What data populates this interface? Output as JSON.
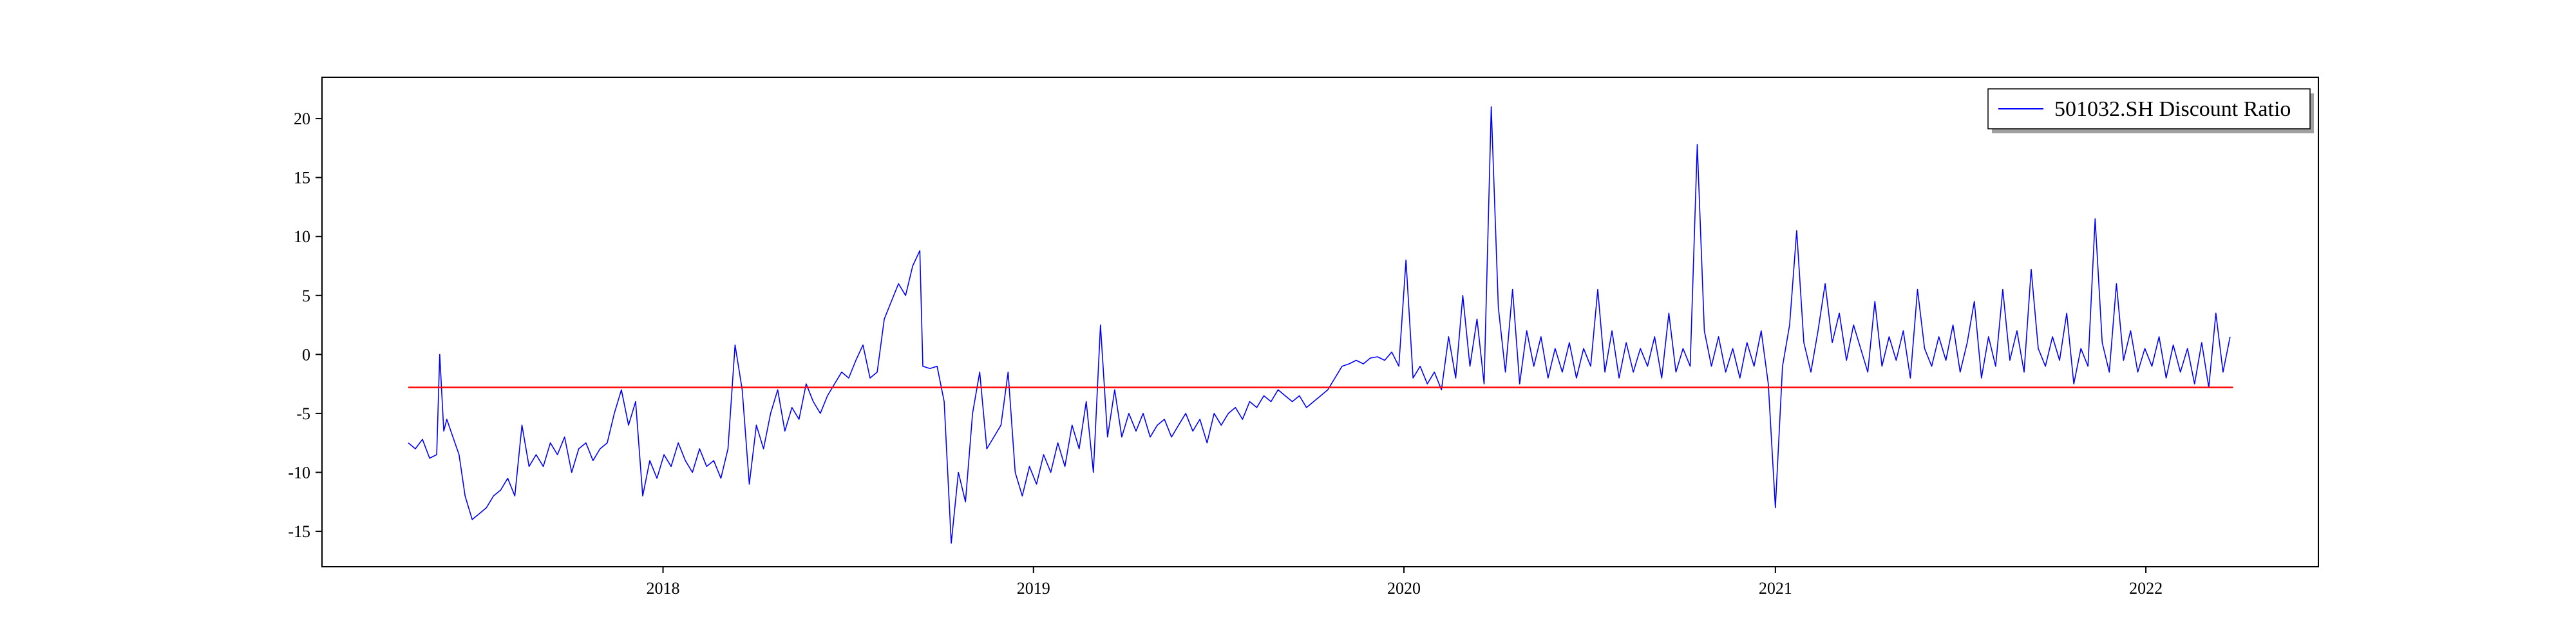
{
  "chart_data": {
    "type": "line",
    "title": "",
    "xlabel": "",
    "ylabel": "",
    "x_ticks": [
      "2018",
      "2019",
      "2020",
      "2021",
      "2022"
    ],
    "y_ticks": [
      20,
      15,
      10,
      5,
      0,
      -5,
      -10,
      -15
    ],
    "ylim": [
      -18,
      23.5
    ],
    "xlim": [
      "2017-01-30",
      "2022-06-20"
    ],
    "legend": {
      "position": "top-right",
      "entries": [
        "501032.SH Discount Ratio"
      ]
    },
    "grid": false,
    "colors": {
      "series": "#0000ff",
      "mean": "#ff0000",
      "axes": "#000000"
    },
    "series": [
      {
        "name": "501032.SH Discount Ratio",
        "color": "#0000ff",
        "points": [
          [
            "2017-04-25",
            -7.5
          ],
          [
            "2017-05-02",
            -8.0
          ],
          [
            "2017-05-09",
            -7.2
          ],
          [
            "2017-05-16",
            -8.8
          ],
          [
            "2017-05-23",
            -8.5
          ],
          [
            "2017-05-26",
            0.0
          ],
          [
            "2017-05-30",
            -6.5
          ],
          [
            "2017-06-02",
            -5.5
          ],
          [
            "2017-06-08",
            -7.0
          ],
          [
            "2017-06-14",
            -8.5
          ],
          [
            "2017-06-20",
            -12.0
          ],
          [
            "2017-06-27",
            -14.0
          ],
          [
            "2017-07-04",
            -13.5
          ],
          [
            "2017-07-11",
            -13.0
          ],
          [
            "2017-07-18",
            -12.0
          ],
          [
            "2017-07-25",
            -11.5
          ],
          [
            "2017-08-01",
            -10.5
          ],
          [
            "2017-08-08",
            -12.0
          ],
          [
            "2017-08-15",
            -6.0
          ],
          [
            "2017-08-22",
            -9.5
          ],
          [
            "2017-08-29",
            -8.5
          ],
          [
            "2017-09-05",
            -9.5
          ],
          [
            "2017-09-12",
            -7.5
          ],
          [
            "2017-09-19",
            -8.5
          ],
          [
            "2017-09-26",
            -7.0
          ],
          [
            "2017-10-03",
            -10.0
          ],
          [
            "2017-10-10",
            -8.0
          ],
          [
            "2017-10-17",
            -7.5
          ],
          [
            "2017-10-24",
            -9.0
          ],
          [
            "2017-10-31",
            -8.0
          ],
          [
            "2017-11-07",
            -7.5
          ],
          [
            "2017-11-14",
            -5.0
          ],
          [
            "2017-11-21",
            -3.0
          ],
          [
            "2017-11-28",
            -6.0
          ],
          [
            "2017-12-05",
            -4.0
          ],
          [
            "2017-12-12",
            -12.0
          ],
          [
            "2017-12-19",
            -9.0
          ],
          [
            "2017-12-26",
            -10.5
          ],
          [
            "2018-01-02",
            -8.5
          ],
          [
            "2018-01-09",
            -9.5
          ],
          [
            "2018-01-16",
            -7.5
          ],
          [
            "2018-01-23",
            -9.0
          ],
          [
            "2018-01-30",
            -10.0
          ],
          [
            "2018-02-06",
            -8.0
          ],
          [
            "2018-02-13",
            -9.5
          ],
          [
            "2018-02-20",
            -9.0
          ],
          [
            "2018-02-27",
            -10.5
          ],
          [
            "2018-03-06",
            -8.0
          ],
          [
            "2018-03-13",
            0.8
          ],
          [
            "2018-03-20",
            -3.0
          ],
          [
            "2018-03-27",
            -11.0
          ],
          [
            "2018-04-03",
            -6.0
          ],
          [
            "2018-04-10",
            -8.0
          ],
          [
            "2018-04-17",
            -5.0
          ],
          [
            "2018-04-24",
            -3.0
          ],
          [
            "2018-05-01",
            -6.5
          ],
          [
            "2018-05-08",
            -4.5
          ],
          [
            "2018-05-15",
            -5.5
          ],
          [
            "2018-05-22",
            -2.5
          ],
          [
            "2018-05-29",
            -4.0
          ],
          [
            "2018-06-05",
            -5.0
          ],
          [
            "2018-06-12",
            -3.5
          ],
          [
            "2018-06-19",
            -2.5
          ],
          [
            "2018-06-26",
            -1.5
          ],
          [
            "2018-07-03",
            -2.0
          ],
          [
            "2018-07-10",
            -0.5
          ],
          [
            "2018-07-17",
            0.8
          ],
          [
            "2018-07-24",
            -2.0
          ],
          [
            "2018-07-31",
            -1.5
          ],
          [
            "2018-08-07",
            3.0
          ],
          [
            "2018-08-14",
            4.5
          ],
          [
            "2018-08-21",
            6.0
          ],
          [
            "2018-08-28",
            5.0
          ],
          [
            "2018-09-04",
            7.5
          ],
          [
            "2018-09-11",
            8.8
          ],
          [
            "2018-09-14",
            -1.0
          ],
          [
            "2018-09-21",
            -1.2
          ],
          [
            "2018-09-28",
            -1.0
          ],
          [
            "2018-10-05",
            -4.0
          ],
          [
            "2018-10-12",
            -16.0
          ],
          [
            "2018-10-19",
            -10.0
          ],
          [
            "2018-10-26",
            -12.5
          ],
          [
            "2018-11-02",
            -5.0
          ],
          [
            "2018-11-09",
            -1.5
          ],
          [
            "2018-11-16",
            -8.0
          ],
          [
            "2018-11-23",
            -7.0
          ],
          [
            "2018-11-30",
            -6.0
          ],
          [
            "2018-12-07",
            -1.5
          ],
          [
            "2018-12-14",
            -10.0
          ],
          [
            "2018-12-21",
            -12.0
          ],
          [
            "2018-12-28",
            -9.5
          ],
          [
            "2019-01-04",
            -11.0
          ],
          [
            "2019-01-11",
            -8.5
          ],
          [
            "2019-01-18",
            -10.0
          ],
          [
            "2019-01-25",
            -7.5
          ],
          [
            "2019-02-01",
            -9.5
          ],
          [
            "2019-02-08",
            -6.0
          ],
          [
            "2019-02-15",
            -8.0
          ],
          [
            "2019-02-22",
            -4.0
          ],
          [
            "2019-03-01",
            -10.0
          ],
          [
            "2019-03-08",
            2.5
          ],
          [
            "2019-03-15",
            -7.0
          ],
          [
            "2019-03-22",
            -3.0
          ],
          [
            "2019-03-29",
            -7.0
          ],
          [
            "2019-04-05",
            -5.0
          ],
          [
            "2019-04-12",
            -6.5
          ],
          [
            "2019-04-19",
            -5.0
          ],
          [
            "2019-04-26",
            -7.0
          ],
          [
            "2019-05-03",
            -6.0
          ],
          [
            "2019-05-10",
            -5.5
          ],
          [
            "2019-05-17",
            -7.0
          ],
          [
            "2019-05-24",
            -6.0
          ],
          [
            "2019-05-31",
            -5.0
          ],
          [
            "2019-06-07",
            -6.5
          ],
          [
            "2019-06-14",
            -5.5
          ],
          [
            "2019-06-21",
            -7.5
          ],
          [
            "2019-06-28",
            -5.0
          ],
          [
            "2019-07-05",
            -6.0
          ],
          [
            "2019-07-12",
            -5.0
          ],
          [
            "2019-07-19",
            -4.5
          ],
          [
            "2019-07-26",
            -5.5
          ],
          [
            "2019-08-02",
            -4.0
          ],
          [
            "2019-08-09",
            -4.5
          ],
          [
            "2019-08-16",
            -3.5
          ],
          [
            "2019-08-23",
            -4.0
          ],
          [
            "2019-08-30",
            -3.0
          ],
          [
            "2019-09-06",
            -3.5
          ],
          [
            "2019-09-13",
            -4.0
          ],
          [
            "2019-09-20",
            -3.5
          ],
          [
            "2019-09-27",
            -4.5
          ],
          [
            "2019-10-04",
            -4.0
          ],
          [
            "2019-10-11",
            -3.5
          ],
          [
            "2019-10-18",
            -3.0
          ],
          [
            "2019-10-25",
            -2.0
          ],
          [
            "2019-11-01",
            -1.0
          ],
          [
            "2019-11-08",
            -0.8
          ],
          [
            "2019-11-15",
            -0.5
          ],
          [
            "2019-11-22",
            -0.8
          ],
          [
            "2019-11-29",
            -0.3
          ],
          [
            "2019-12-06",
            -0.2
          ],
          [
            "2019-12-13",
            -0.5
          ],
          [
            "2019-12-20",
            0.2
          ],
          [
            "2019-12-27",
            -1.0
          ],
          [
            "2020-01-03",
            8.0
          ],
          [
            "2020-01-10",
            -2.0
          ],
          [
            "2020-01-17",
            -1.0
          ],
          [
            "2020-01-24",
            -2.5
          ],
          [
            "2020-01-31",
            -1.5
          ],
          [
            "2020-02-07",
            -3.0
          ],
          [
            "2020-02-14",
            1.5
          ],
          [
            "2020-02-21",
            -2.0
          ],
          [
            "2020-02-28",
            5.0
          ],
          [
            "2020-03-06",
            -1.0
          ],
          [
            "2020-03-13",
            3.0
          ],
          [
            "2020-03-20",
            -2.5
          ],
          [
            "2020-03-27",
            21.0
          ],
          [
            "2020-04-03",
            4.0
          ],
          [
            "2020-04-10",
            -1.5
          ],
          [
            "2020-04-17",
            5.5
          ],
          [
            "2020-04-24",
            -2.5
          ],
          [
            "2020-05-01",
            2.0
          ],
          [
            "2020-05-08",
            -1.0
          ],
          [
            "2020-05-15",
            1.5
          ],
          [
            "2020-05-22",
            -2.0
          ],
          [
            "2020-05-29",
            0.5
          ],
          [
            "2020-06-05",
            -1.5
          ],
          [
            "2020-06-12",
            1.0
          ],
          [
            "2020-06-19",
            -2.0
          ],
          [
            "2020-06-26",
            0.5
          ],
          [
            "2020-07-03",
            -1.0
          ],
          [
            "2020-07-10",
            5.5
          ],
          [
            "2020-07-17",
            -1.5
          ],
          [
            "2020-07-24",
            2.0
          ],
          [
            "2020-07-31",
            -2.0
          ],
          [
            "2020-08-07",
            1.0
          ],
          [
            "2020-08-14",
            -1.5
          ],
          [
            "2020-08-21",
            0.5
          ],
          [
            "2020-08-28",
            -1.0
          ],
          [
            "2020-09-04",
            1.5
          ],
          [
            "2020-09-11",
            -2.0
          ],
          [
            "2020-09-18",
            3.5
          ],
          [
            "2020-09-25",
            -1.5
          ],
          [
            "2020-10-02",
            0.5
          ],
          [
            "2020-10-09",
            -1.0
          ],
          [
            "2020-10-16",
            17.8
          ],
          [
            "2020-10-23",
            2.0
          ],
          [
            "2020-10-30",
            -1.0
          ],
          [
            "2020-11-06",
            1.5
          ],
          [
            "2020-11-13",
            -1.5
          ],
          [
            "2020-11-20",
            0.5
          ],
          [
            "2020-11-27",
            -2.0
          ],
          [
            "2020-12-04",
            1.0
          ],
          [
            "2020-12-11",
            -1.0
          ],
          [
            "2020-12-18",
            2.0
          ],
          [
            "2020-12-25",
            -2.5
          ],
          [
            "2021-01-01",
            -13.0
          ],
          [
            "2021-01-08",
            -1.0
          ],
          [
            "2021-01-15",
            2.5
          ],
          [
            "2021-01-22",
            10.5
          ],
          [
            "2021-01-29",
            1.0
          ],
          [
            "2021-02-05",
            -1.5
          ],
          [
            "2021-02-12",
            2.0
          ],
          [
            "2021-02-19",
            6.0
          ],
          [
            "2021-02-26",
            1.0
          ],
          [
            "2021-03-05",
            3.5
          ],
          [
            "2021-03-12",
            -0.5
          ],
          [
            "2021-03-19",
            2.5
          ],
          [
            "2021-03-26",
            0.5
          ],
          [
            "2021-04-02",
            -1.5
          ],
          [
            "2021-04-09",
            4.5
          ],
          [
            "2021-04-16",
            -1.0
          ],
          [
            "2021-04-23",
            1.5
          ],
          [
            "2021-04-30",
            -0.5
          ],
          [
            "2021-05-07",
            2.0
          ],
          [
            "2021-05-14",
            -2.0
          ],
          [
            "2021-05-21",
            5.5
          ],
          [
            "2021-05-28",
            0.5
          ],
          [
            "2021-06-04",
            -1.0
          ],
          [
            "2021-06-11",
            1.5
          ],
          [
            "2021-06-18",
            -0.5
          ],
          [
            "2021-06-25",
            2.5
          ],
          [
            "2021-07-02",
            -1.5
          ],
          [
            "2021-07-09",
            1.0
          ],
          [
            "2021-07-16",
            4.5
          ],
          [
            "2021-07-23",
            -2.0
          ],
          [
            "2021-07-30",
            1.5
          ],
          [
            "2021-08-06",
            -1.0
          ],
          [
            "2021-08-13",
            5.5
          ],
          [
            "2021-08-20",
            -0.5
          ],
          [
            "2021-08-27",
            2.0
          ],
          [
            "2021-09-03",
            -1.5
          ],
          [
            "2021-09-10",
            7.2
          ],
          [
            "2021-09-17",
            0.5
          ],
          [
            "2021-09-24",
            -1.0
          ],
          [
            "2021-10-01",
            1.5
          ],
          [
            "2021-10-08",
            -0.5
          ],
          [
            "2021-10-15",
            3.5
          ],
          [
            "2021-10-22",
            -2.5
          ],
          [
            "2021-10-29",
            0.5
          ],
          [
            "2021-11-05",
            -1.0
          ],
          [
            "2021-11-12",
            11.5
          ],
          [
            "2021-11-19",
            1.0
          ],
          [
            "2021-11-26",
            -1.5
          ],
          [
            "2021-12-03",
            6.0
          ],
          [
            "2021-12-10",
            -0.5
          ],
          [
            "2021-12-17",
            2.0
          ],
          [
            "2021-12-24",
            -1.5
          ],
          [
            "2021-12-31",
            0.5
          ],
          [
            "2022-01-07",
            -1.0
          ],
          [
            "2022-01-14",
            1.5
          ],
          [
            "2022-01-21",
            -2.0
          ],
          [
            "2022-01-28",
            0.8
          ],
          [
            "2022-02-04",
            -1.5
          ],
          [
            "2022-02-11",
            0.5
          ],
          [
            "2022-02-18",
            -2.5
          ],
          [
            "2022-02-25",
            1.0
          ],
          [
            "2022-03-04",
            -2.8
          ],
          [
            "2022-03-11",
            3.5
          ],
          [
            "2022-03-18",
            -1.5
          ],
          [
            "2022-03-25",
            1.5
          ]
        ]
      },
      {
        "name": "",
        "color": "#ff0000",
        "points": [
          [
            "2017-04-25",
            -2.8
          ],
          [
            "2022-03-28",
            -2.8
          ]
        ]
      }
    ]
  }
}
